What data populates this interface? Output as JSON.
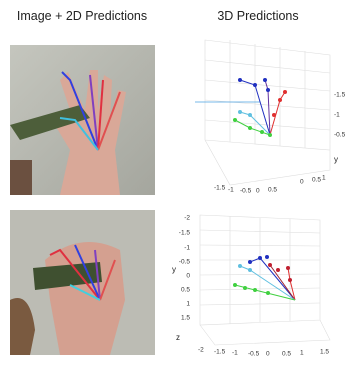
{
  "titles": {
    "left": "Image + 2D Predictions",
    "right": "3D Predictions"
  },
  "plot_top": {
    "x_ticks": [
      "-1.5",
      "-1",
      "-0.5",
      "0",
      "0.5"
    ],
    "y_ticks": [
      "-1.5",
      "-1",
      "-0.5"
    ],
    "y_label": "y",
    "z_ticks": [
      "0",
      "0.5",
      "1"
    ]
  },
  "plot_bottom": {
    "y_ticks": [
      "-2",
      "-1.5",
      "-1",
      "-0.5",
      "0",
      "0.5",
      "1",
      "1.5"
    ],
    "y_label": "y",
    "z_label": "z",
    "x_ticks": [
      "-2",
      "-1.5",
      "-1",
      "-0.5",
      "0",
      "0.5",
      "1",
      "1.5"
    ]
  }
}
